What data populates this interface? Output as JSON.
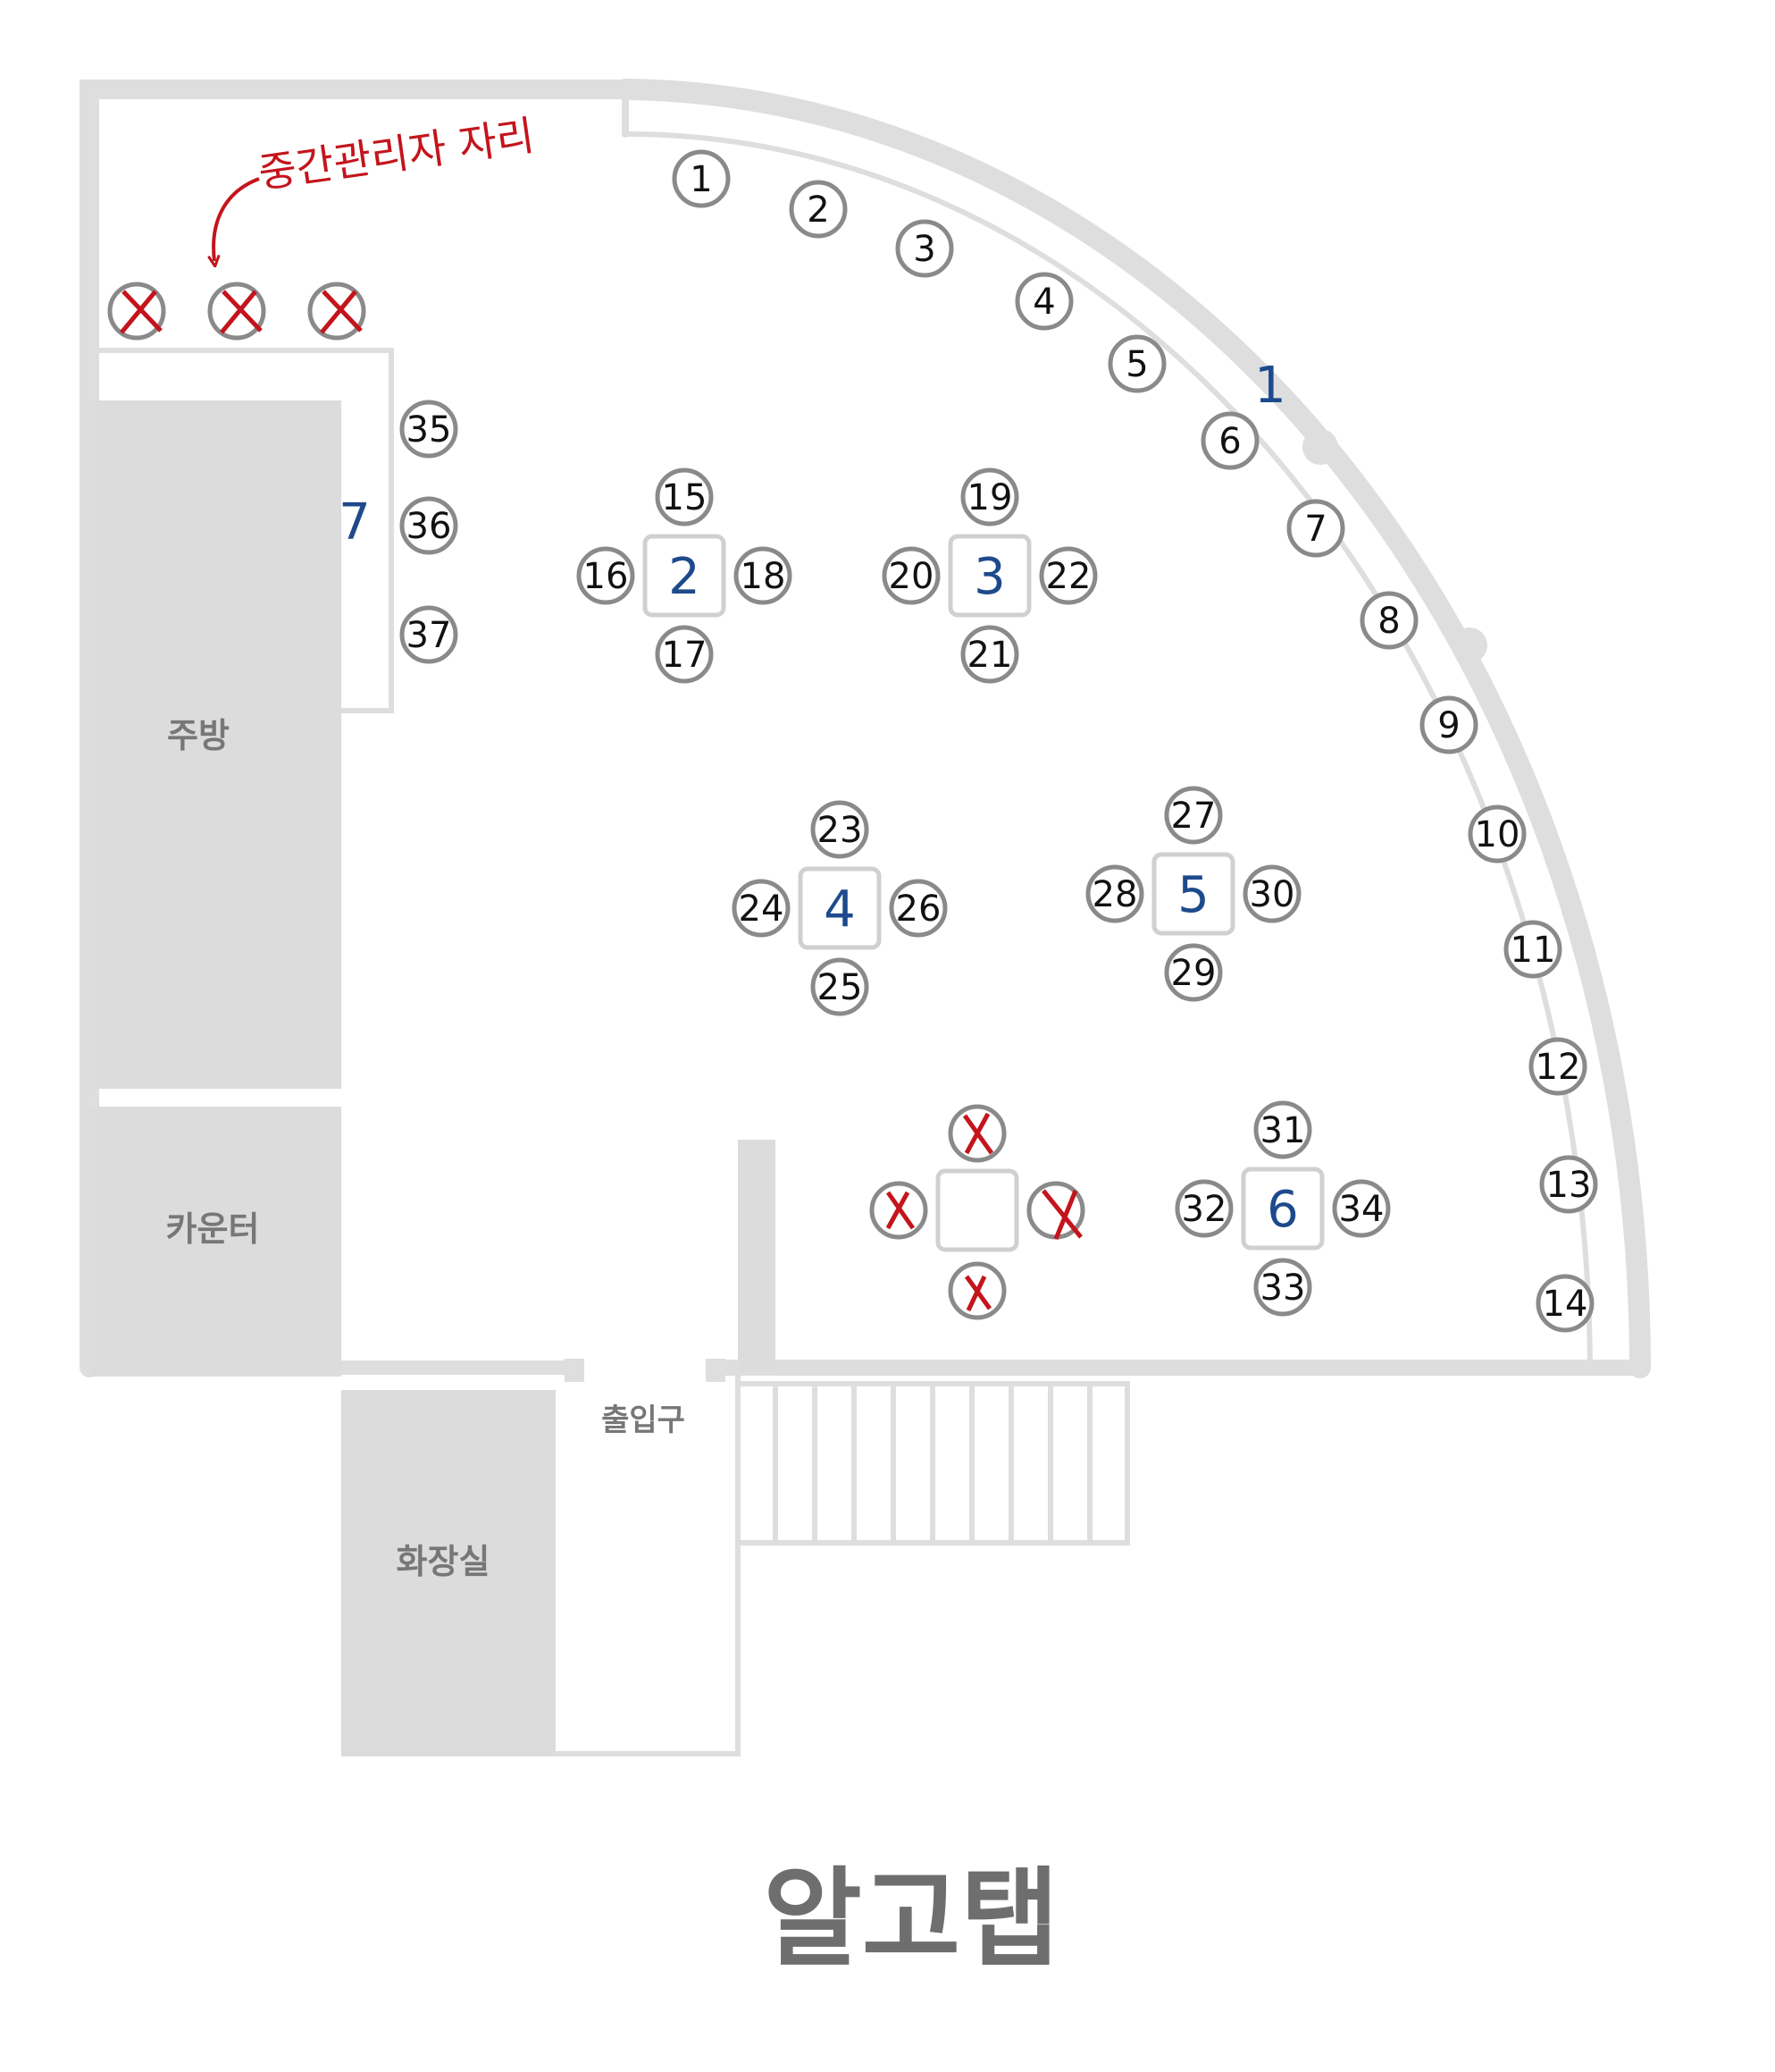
{
  "title": "알고탭",
  "rooms": {
    "kitchen": "주방",
    "counter": "카운터",
    "entrance": "출입구",
    "restroom": "화장실"
  },
  "annotation": "중간관리자 자리",
  "colors": {
    "wall": "#dedede",
    "seat_ring": "#8a8a8a",
    "marker_red": "#c4141c",
    "table_blue": "#1d4a8c",
    "room_fill": "#dcdcdc"
  },
  "window_seats": [
    "1",
    "2",
    "3",
    "4",
    "5",
    "6",
    "7",
    "8",
    "9",
    "10",
    "11",
    "12",
    "13",
    "14"
  ],
  "window_group_label": "1",
  "wall_group_label": "7",
  "wall_seats": [
    "35",
    "36",
    "37"
  ],
  "tables": [
    {
      "label": "2",
      "seats": [
        "15",
        "16",
        "17",
        "18"
      ]
    },
    {
      "label": "3",
      "seats": [
        "19",
        "20",
        "21",
        "22"
      ]
    },
    {
      "label": "4",
      "seats": [
        "23",
        "24",
        "25",
        "26"
      ]
    },
    {
      "label": "5",
      "seats": [
        "27",
        "28",
        "29",
        "30"
      ]
    },
    {
      "label": "6",
      "seats": [
        "31",
        "32",
        "33",
        "34"
      ]
    }
  ]
}
